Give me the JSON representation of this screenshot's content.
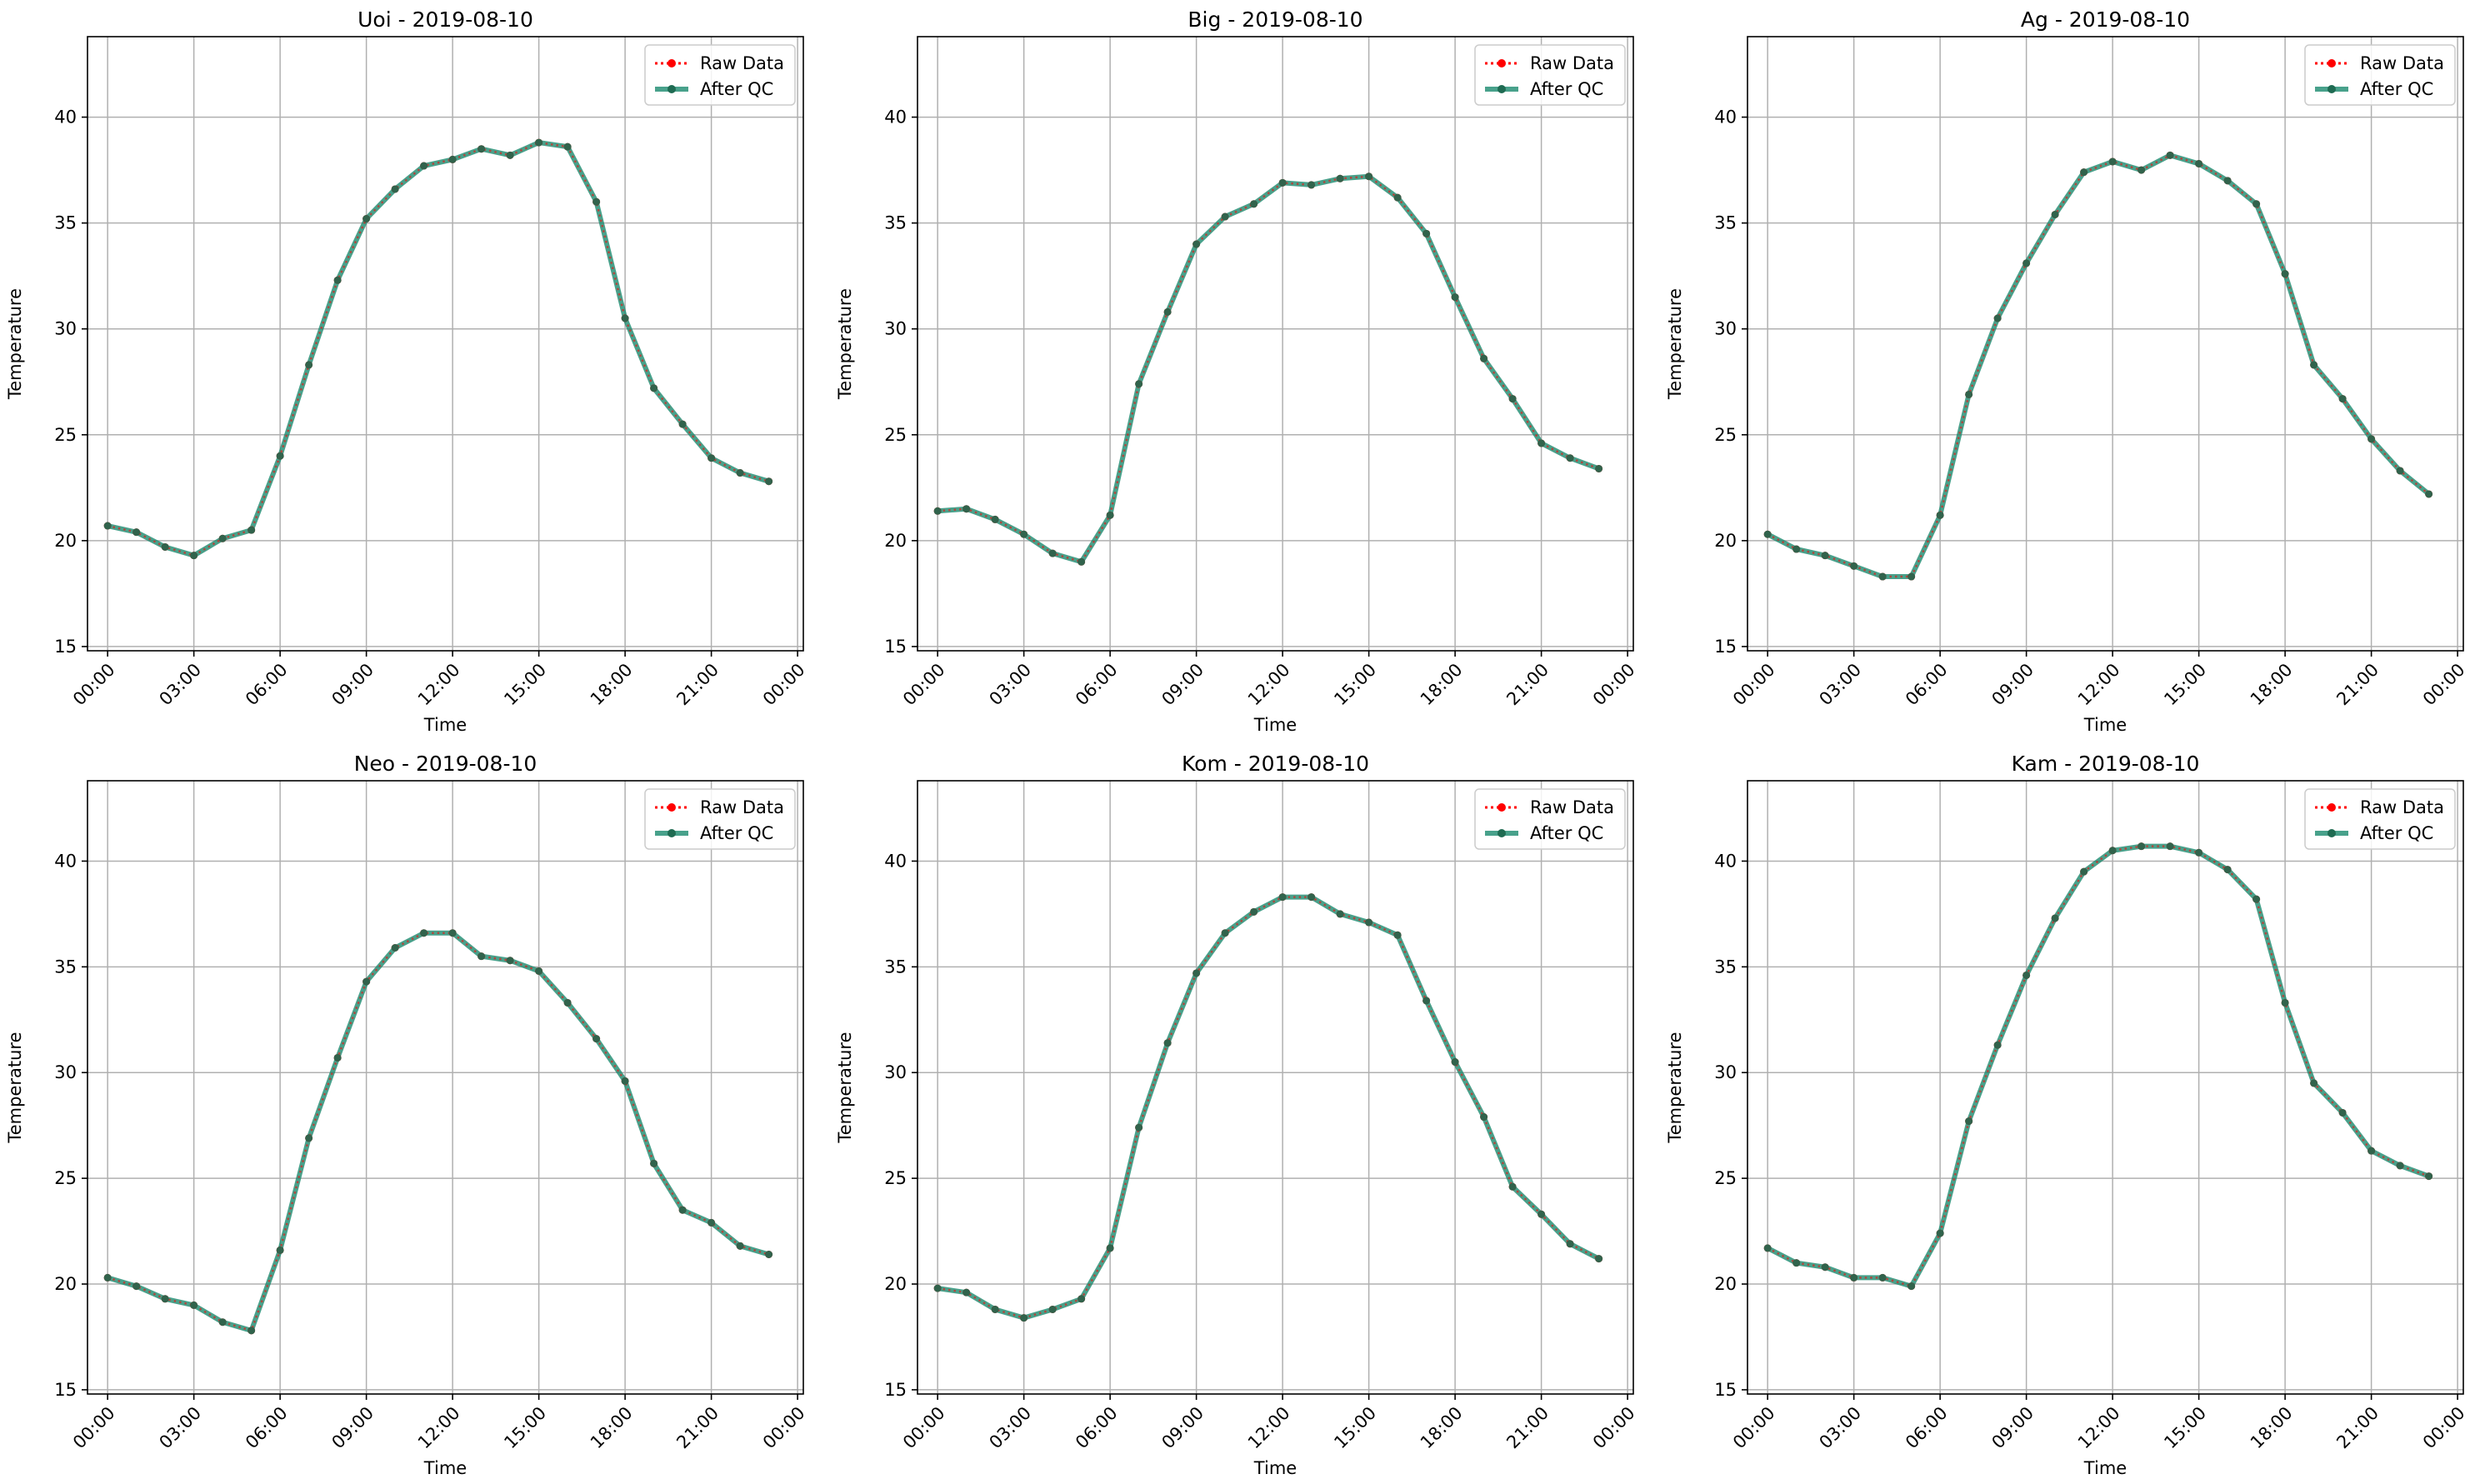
{
  "figure": {
    "background": "#ffffff",
    "colors": {
      "raw": "#ff0000",
      "qc": "#1a8a6e",
      "qc_marker": "#1f6b52",
      "grid": "#b0b0b0",
      "axes": "#000000"
    }
  },
  "chart_data": [
    {
      "type": "line",
      "title": "Uoi - 2019-08-10",
      "xlabel": "Time",
      "ylabel": "Temperature",
      "ylim": [
        14.8,
        43.8
      ],
      "xlim": [
        -0.7,
        24.2
      ],
      "yticks": [
        15,
        20,
        25,
        30,
        35,
        40
      ],
      "xticks": [
        0,
        3,
        6,
        9,
        12,
        15,
        18,
        21,
        24
      ],
      "xtick_labels": [
        "00:00",
        "03:00",
        "06:00",
        "09:00",
        "12:00",
        "15:00",
        "18:00",
        "21:00",
        "00:00"
      ],
      "x": [
        0,
        1,
        2,
        3,
        4,
        5,
        6,
        7,
        8,
        9,
        10,
        11,
        12,
        13,
        14,
        15,
        16,
        17,
        18,
        19,
        20,
        21,
        22,
        23
      ],
      "grid": true,
      "legend_loc": "upper right",
      "series": [
        {
          "name": "Raw Data",
          "values": [
            20.7,
            20.4,
            19.7,
            19.3,
            20.1,
            20.5,
            24.0,
            28.3,
            32.3,
            35.2,
            36.6,
            37.7,
            38.0,
            38.5,
            38.2,
            38.8,
            38.6,
            36.0,
            30.5,
            27.2,
            25.5,
            23.9,
            23.2,
            22.8
          ]
        },
        {
          "name": "After QC",
          "values": [
            20.7,
            20.4,
            19.7,
            19.3,
            20.1,
            20.5,
            24.0,
            28.3,
            32.3,
            35.2,
            36.6,
            37.7,
            38.0,
            38.5,
            38.2,
            38.8,
            38.6,
            36.0,
            30.5,
            27.2,
            25.5,
            23.9,
            23.2,
            22.8
          ]
        }
      ]
    },
    {
      "type": "line",
      "title": "Big - 2019-08-10",
      "xlabel": "Time",
      "ylabel": "Temperature",
      "ylim": [
        14.8,
        43.8
      ],
      "xlim": [
        -0.7,
        24.2
      ],
      "yticks": [
        15,
        20,
        25,
        30,
        35,
        40
      ],
      "xticks": [
        0,
        3,
        6,
        9,
        12,
        15,
        18,
        21,
        24
      ],
      "xtick_labels": [
        "00:00",
        "03:00",
        "06:00",
        "09:00",
        "12:00",
        "15:00",
        "18:00",
        "21:00",
        "00:00"
      ],
      "x": [
        0,
        1,
        2,
        3,
        4,
        5,
        6,
        7,
        8,
        9,
        10,
        11,
        12,
        13,
        14,
        15,
        16,
        17,
        18,
        19,
        20,
        21,
        22,
        23
      ],
      "grid": true,
      "legend_loc": "upper right",
      "series": [
        {
          "name": "Raw Data",
          "values": [
            21.4,
            21.5,
            21.0,
            20.3,
            19.4,
            19.0,
            21.2,
            27.4,
            30.8,
            34.0,
            35.3,
            35.9,
            36.9,
            36.8,
            37.1,
            37.2,
            36.2,
            34.5,
            31.5,
            28.6,
            26.7,
            24.6,
            23.9,
            23.4
          ]
        },
        {
          "name": "After QC",
          "values": [
            21.4,
            21.5,
            21.0,
            20.3,
            19.4,
            19.0,
            21.2,
            27.4,
            30.8,
            34.0,
            35.3,
            35.9,
            36.9,
            36.8,
            37.1,
            37.2,
            36.2,
            34.5,
            31.5,
            28.6,
            26.7,
            24.6,
            23.9,
            23.4
          ]
        }
      ]
    },
    {
      "type": "line",
      "title": "Ag - 2019-08-10",
      "xlabel": "Time",
      "ylabel": "Temperature",
      "ylim": [
        14.8,
        43.8
      ],
      "xlim": [
        -0.7,
        24.2
      ],
      "yticks": [
        15,
        20,
        25,
        30,
        35,
        40
      ],
      "xticks": [
        0,
        3,
        6,
        9,
        12,
        15,
        18,
        21,
        24
      ],
      "xtick_labels": [
        "00:00",
        "03:00",
        "06:00",
        "09:00",
        "12:00",
        "15:00",
        "18:00",
        "21:00",
        "00:00"
      ],
      "x": [
        0,
        1,
        2,
        3,
        4,
        5,
        6,
        7,
        8,
        9,
        10,
        11,
        12,
        13,
        14,
        15,
        16,
        17,
        18,
        19,
        20,
        21,
        22,
        23
      ],
      "grid": true,
      "legend_loc": "upper right",
      "series": [
        {
          "name": "Raw Data",
          "values": [
            20.3,
            19.6,
            19.3,
            18.8,
            18.3,
            18.3,
            21.2,
            26.9,
            30.5,
            33.1,
            35.4,
            37.4,
            37.9,
            37.5,
            38.2,
            37.8,
            37.0,
            35.9,
            32.6,
            28.3,
            26.7,
            24.8,
            23.3,
            22.2
          ]
        },
        {
          "name": "After QC",
          "values": [
            20.3,
            19.6,
            19.3,
            18.8,
            18.3,
            18.3,
            21.2,
            26.9,
            30.5,
            33.1,
            35.4,
            37.4,
            37.9,
            37.5,
            38.2,
            37.8,
            37.0,
            35.9,
            32.6,
            28.3,
            26.7,
            24.8,
            23.3,
            22.2
          ]
        }
      ]
    },
    {
      "type": "line",
      "title": "Neo - 2019-08-10",
      "xlabel": "Time",
      "ylabel": "Temperature",
      "ylim": [
        14.8,
        43.8
      ],
      "xlim": [
        -0.7,
        24.2
      ],
      "yticks": [
        15,
        20,
        25,
        30,
        35,
        40
      ],
      "xticks": [
        0,
        3,
        6,
        9,
        12,
        15,
        18,
        21,
        24
      ],
      "xtick_labels": [
        "00:00",
        "03:00",
        "06:00",
        "09:00",
        "12:00",
        "15:00",
        "18:00",
        "21:00",
        "00:00"
      ],
      "x": [
        0,
        1,
        2,
        3,
        4,
        5,
        6,
        7,
        8,
        9,
        10,
        11,
        12,
        13,
        14,
        15,
        16,
        17,
        18,
        19,
        20,
        21,
        22,
        23
      ],
      "grid": true,
      "legend_loc": "upper right",
      "series": [
        {
          "name": "Raw Data",
          "values": [
            20.3,
            19.9,
            19.3,
            19.0,
            18.2,
            17.8,
            21.6,
            26.9,
            30.7,
            34.3,
            35.9,
            36.6,
            36.6,
            35.5,
            35.3,
            34.8,
            33.3,
            31.6,
            29.6,
            25.7,
            23.5,
            22.9,
            21.8,
            21.4
          ]
        },
        {
          "name": "After QC",
          "values": [
            20.3,
            19.9,
            19.3,
            19.0,
            18.2,
            17.8,
            21.6,
            26.9,
            30.7,
            34.3,
            35.9,
            36.6,
            36.6,
            35.5,
            35.3,
            34.8,
            33.3,
            31.6,
            29.6,
            25.7,
            23.5,
            22.9,
            21.8,
            21.4
          ]
        }
      ]
    },
    {
      "type": "line",
      "title": "Kom - 2019-08-10",
      "xlabel": "Time",
      "ylabel": "Temperature",
      "ylim": [
        14.8,
        43.8
      ],
      "xlim": [
        -0.7,
        24.2
      ],
      "yticks": [
        15,
        20,
        25,
        30,
        35,
        40
      ],
      "xticks": [
        0,
        3,
        6,
        9,
        12,
        15,
        18,
        21,
        24
      ],
      "xtick_labels": [
        "00:00",
        "03:00",
        "06:00",
        "09:00",
        "12:00",
        "15:00",
        "18:00",
        "21:00",
        "00:00"
      ],
      "x": [
        0,
        1,
        2,
        3,
        4,
        5,
        6,
        7,
        8,
        9,
        10,
        11,
        12,
        13,
        14,
        15,
        16,
        17,
        18,
        19,
        20,
        21,
        22,
        23
      ],
      "grid": true,
      "legend_loc": "upper right",
      "series": [
        {
          "name": "Raw Data",
          "values": [
            19.8,
            19.6,
            18.8,
            18.4,
            18.8,
            19.3,
            21.7,
            27.4,
            31.4,
            34.7,
            36.6,
            37.6,
            38.3,
            38.3,
            37.5,
            37.1,
            36.5,
            33.4,
            30.5,
            27.9,
            24.6,
            23.3,
            21.9,
            21.2
          ]
        },
        {
          "name": "After QC",
          "values": [
            19.8,
            19.6,
            18.8,
            18.4,
            18.8,
            19.3,
            21.7,
            27.4,
            31.4,
            34.7,
            36.6,
            37.6,
            38.3,
            38.3,
            37.5,
            37.1,
            36.5,
            33.4,
            30.5,
            27.9,
            24.6,
            23.3,
            21.9,
            21.2
          ]
        }
      ]
    },
    {
      "type": "line",
      "title": "Kam - 2019-08-10",
      "xlabel": "Time",
      "ylabel": "Temperature",
      "ylim": [
        14.8,
        43.8
      ],
      "xlim": [
        -0.7,
        24.2
      ],
      "yticks": [
        15,
        20,
        25,
        30,
        35,
        40
      ],
      "xticks": [
        0,
        3,
        6,
        9,
        12,
        15,
        18,
        21,
        24
      ],
      "xtick_labels": [
        "00:00",
        "03:00",
        "06:00",
        "09:00",
        "12:00",
        "15:00",
        "18:00",
        "21:00",
        "00:00"
      ],
      "x": [
        0,
        1,
        2,
        3,
        4,
        5,
        6,
        7,
        8,
        9,
        10,
        11,
        12,
        13,
        14,
        15,
        16,
        17,
        18,
        19,
        20,
        21,
        22,
        23
      ],
      "grid": true,
      "legend_loc": "upper right",
      "series": [
        {
          "name": "Raw Data",
          "values": [
            21.7,
            21.0,
            20.8,
            20.3,
            20.3,
            19.9,
            22.4,
            27.7,
            31.3,
            34.6,
            37.3,
            39.5,
            40.5,
            40.7,
            40.7,
            40.4,
            39.6,
            38.2,
            33.3,
            29.5,
            28.1,
            26.3,
            25.6,
            25.1
          ]
        },
        {
          "name": "After QC",
          "values": [
            21.7,
            21.0,
            20.8,
            20.3,
            20.3,
            19.9,
            22.4,
            27.7,
            31.3,
            34.6,
            37.3,
            39.5,
            40.5,
            40.7,
            40.7,
            40.4,
            39.6,
            38.2,
            33.3,
            29.5,
            28.1,
            26.3,
            25.6,
            25.1
          ]
        }
      ]
    }
  ]
}
